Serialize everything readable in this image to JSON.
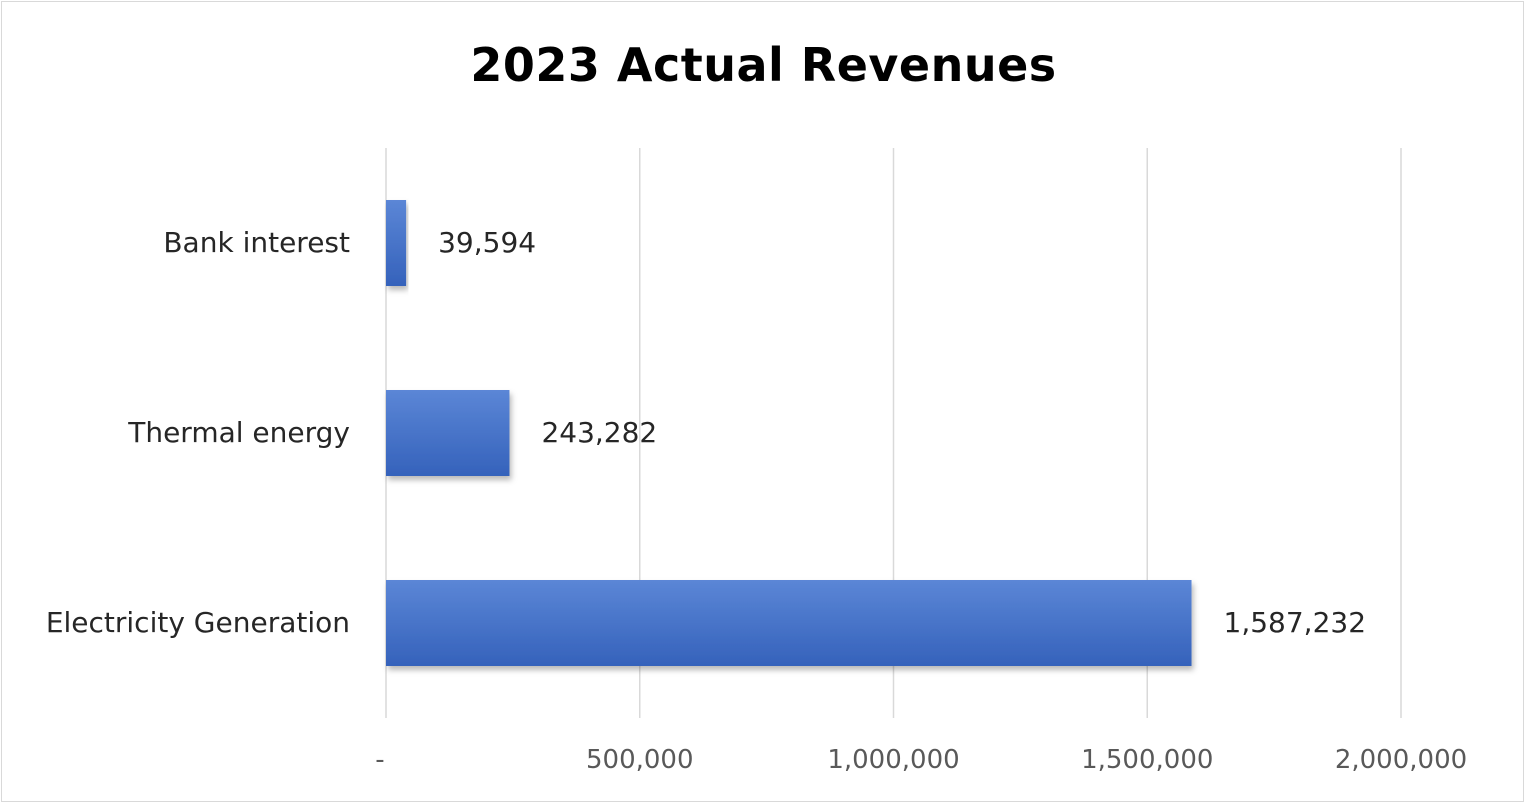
{
  "chart_data": {
    "type": "bar",
    "orientation": "horizontal",
    "title": "2023 Actual Revenues",
    "xlabel": "",
    "ylabel": "",
    "categories": [
      "Bank interest",
      "Thermal energy",
      "Electricity Generation"
    ],
    "values": [
      39594,
      243282,
      1587232
    ],
    "data_labels": [
      "39,594",
      "243,282",
      "1,587,232"
    ],
    "xlim": [
      0,
      2000000
    ],
    "x_ticks": [
      0,
      500000,
      1000000,
      1500000,
      2000000
    ],
    "x_tick_labels": [
      "-",
      "500,000",
      "1,000,000",
      "1,500,000",
      "2,000,000"
    ],
    "grid": "vertical",
    "legend": "none",
    "bar_color": "#4472c4"
  }
}
